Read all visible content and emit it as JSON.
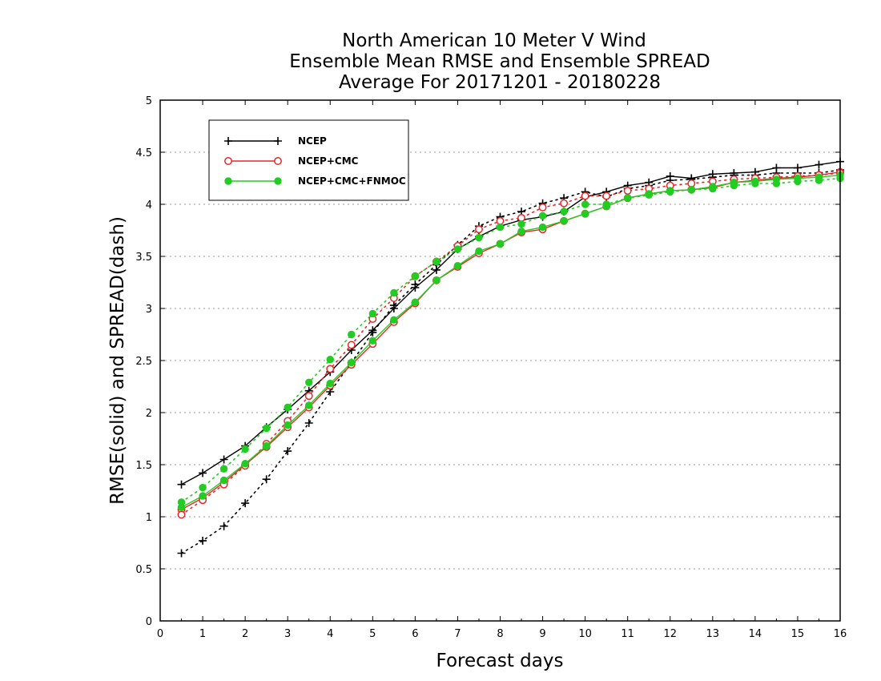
{
  "chart_data": {
    "type": "line",
    "title": [
      "North American 10 Meter V Wind",
      "Ensemble Mean RMSE and Ensemble SPREAD",
      "Average For 20171201 - 20180228"
    ],
    "xlabel": "Forecast days",
    "ylabel": "RMSE(solid) and SPREAD(dash)",
    "xlim": [
      0,
      16
    ],
    "ylim": [
      0,
      5
    ],
    "xticks": [
      0,
      1,
      2,
      3,
      4,
      5,
      6,
      7,
      8,
      9,
      10,
      11,
      12,
      13,
      14,
      15,
      16
    ],
    "yticks": [
      0,
      0.5,
      1,
      1.5,
      2,
      2.5,
      3,
      3.5,
      4,
      4.5,
      5
    ],
    "ytick_labels": [
      "0",
      "0.5",
      "1",
      "1.5",
      "2",
      "2.5",
      "3",
      "3.5",
      "4",
      "4.5",
      "5"
    ],
    "grid": "horizontal-dotted",
    "legend_position": "top-left",
    "x": [
      0.5,
      1,
      1.5,
      2,
      2.5,
      3,
      3.5,
      4,
      4.5,
      5,
      5.5,
      6,
      6.5,
      7,
      7.5,
      8,
      8.5,
      9,
      9.5,
      10,
      10.5,
      11,
      11.5,
      12,
      12.5,
      13,
      13.5,
      14,
      14.5,
      15,
      15.5,
      16
    ],
    "series": [
      {
        "name": "NCEP",
        "color": "#000000",
        "marker": "plus",
        "rmse": [
          1.31,
          1.42,
          1.55,
          1.68,
          1.86,
          2.03,
          2.21,
          2.39,
          2.6,
          2.79,
          3.0,
          3.2,
          3.37,
          3.57,
          3.69,
          3.79,
          3.85,
          3.88,
          3.93,
          4.07,
          4.12,
          4.18,
          4.21,
          4.27,
          4.25,
          4.29,
          4.3,
          4.31,
          4.35,
          4.35,
          4.38,
          4.41
        ],
        "spread": [
          0.65,
          0.77,
          0.91,
          1.13,
          1.36,
          1.63,
          1.9,
          2.2,
          2.48,
          2.77,
          3.03,
          3.23,
          3.42,
          3.61,
          3.79,
          3.88,
          3.93,
          4.01,
          4.06,
          4.12,
          4.07,
          4.15,
          4.18,
          4.23,
          4.24,
          4.26,
          4.28,
          4.28,
          4.3,
          4.3,
          4.3,
          4.33
        ]
      },
      {
        "name": "NCEP+CMC",
        "color": "#e8272a",
        "marker": "open-circle",
        "rmse": [
          1.07,
          1.18,
          1.33,
          1.5,
          1.67,
          1.86,
          2.05,
          2.26,
          2.46,
          2.66,
          2.87,
          3.05,
          3.27,
          3.4,
          3.53,
          3.62,
          3.73,
          3.76,
          3.84,
          3.91,
          3.98,
          4.06,
          4.1,
          4.13,
          4.14,
          4.16,
          4.21,
          4.23,
          4.25,
          4.26,
          4.28,
          4.31
        ],
        "spread": [
          1.02,
          1.16,
          1.31,
          1.49,
          1.7,
          1.92,
          2.16,
          2.42,
          2.65,
          2.9,
          3.1,
          3.31,
          3.45,
          3.6,
          3.76,
          3.84,
          3.87,
          3.97,
          4.01,
          4.08,
          4.08,
          4.13,
          4.15,
          4.18,
          4.2,
          4.22,
          4.24,
          4.25,
          4.26,
          4.27,
          4.28,
          4.3
        ]
      },
      {
        "name": "NCEP+CMC+FNMOC",
        "color": "#22cc22",
        "marker": "filled-circle",
        "rmse": [
          1.09,
          1.2,
          1.35,
          1.51,
          1.68,
          1.88,
          2.07,
          2.28,
          2.48,
          2.69,
          2.89,
          3.06,
          3.27,
          3.41,
          3.55,
          3.62,
          3.74,
          3.78,
          3.84,
          3.91,
          3.98,
          4.06,
          4.1,
          4.13,
          4.14,
          4.17,
          4.21,
          4.22,
          4.24,
          4.25,
          4.26,
          4.28
        ],
        "spread": [
          1.14,
          1.28,
          1.46,
          1.65,
          1.85,
          2.05,
          2.29,
          2.51,
          2.75,
          2.95,
          3.15,
          3.31,
          3.45,
          3.57,
          3.68,
          3.78,
          3.81,
          3.89,
          3.93,
          4.0,
          4.0,
          4.06,
          4.09,
          4.12,
          4.14,
          4.15,
          4.18,
          4.2,
          4.2,
          4.22,
          4.23,
          4.25
        ]
      }
    ]
  }
}
